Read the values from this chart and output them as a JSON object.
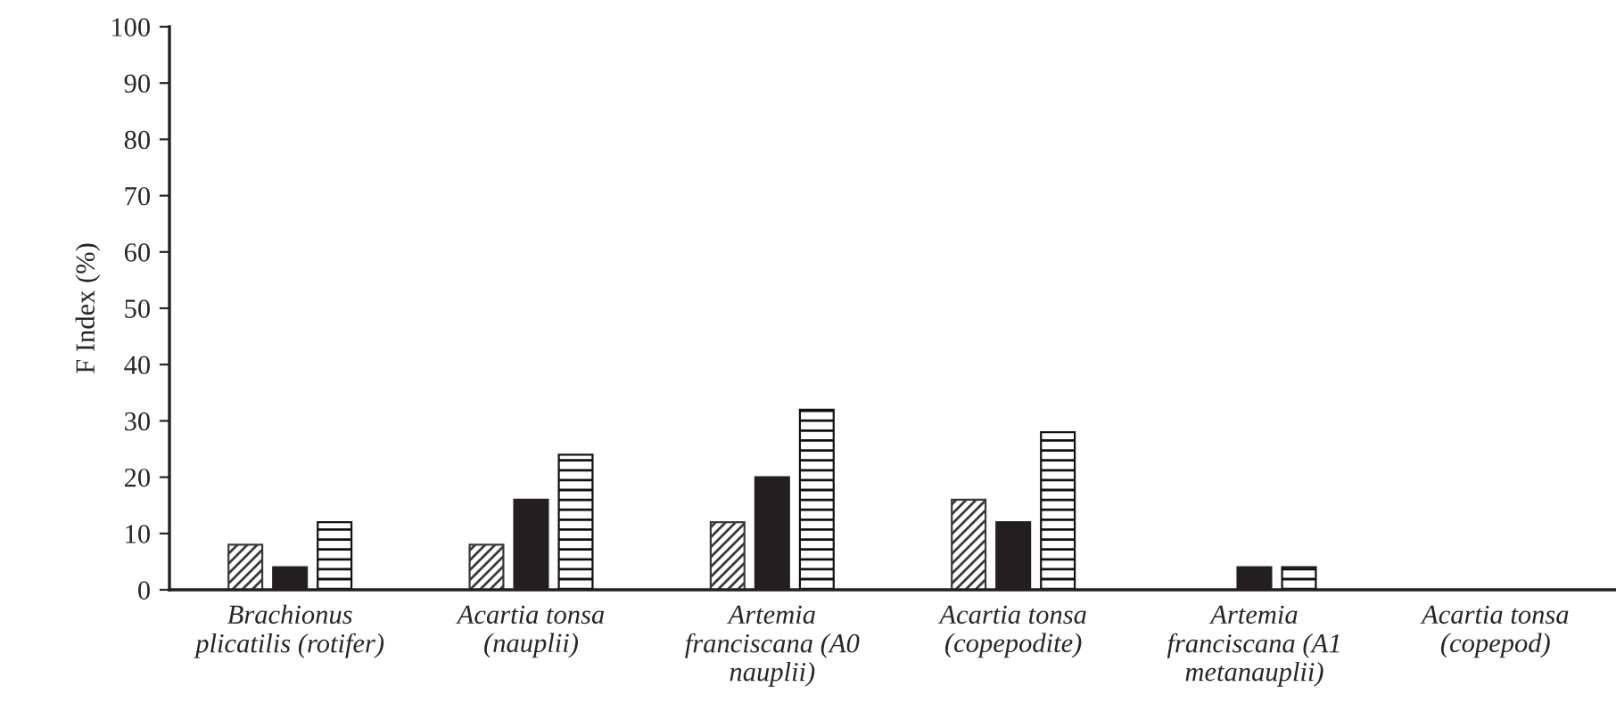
{
  "chart_data": {
    "type": "bar",
    "ylabel": "F Index (%)",
    "categories": [
      "Brachionus\nplicatilis (rotifer)",
      "Acartia tonsa\n(nauplii)",
      "Artemia\nfranciscana (A0\nnauplii)",
      "Acartia tonsa\n(copepodite)",
      "Artemia\nfranciscana (A1\nmetanauplii)",
      "Acartia tonsa\n(copepod)"
    ],
    "series": [
      {
        "color": "#3a3a3a",
        "values": [
          8,
          8,
          12,
          16,
          0,
          0
        ]
      },
      {
        "color": "#231f20",
        "values": [
          4,
          16,
          20,
          12,
          4,
          0
        ]
      },
      {
        "color": "#111111",
        "values": [
          12,
          24,
          32,
          28,
          4,
          0
        ]
      }
    ],
    "ylim": [
      0,
      100
    ],
    "yticks": [
      0,
      10,
      20,
      30,
      40,
      50,
      60,
      70,
      80,
      90,
      100
    ],
    "grid": false
  }
}
